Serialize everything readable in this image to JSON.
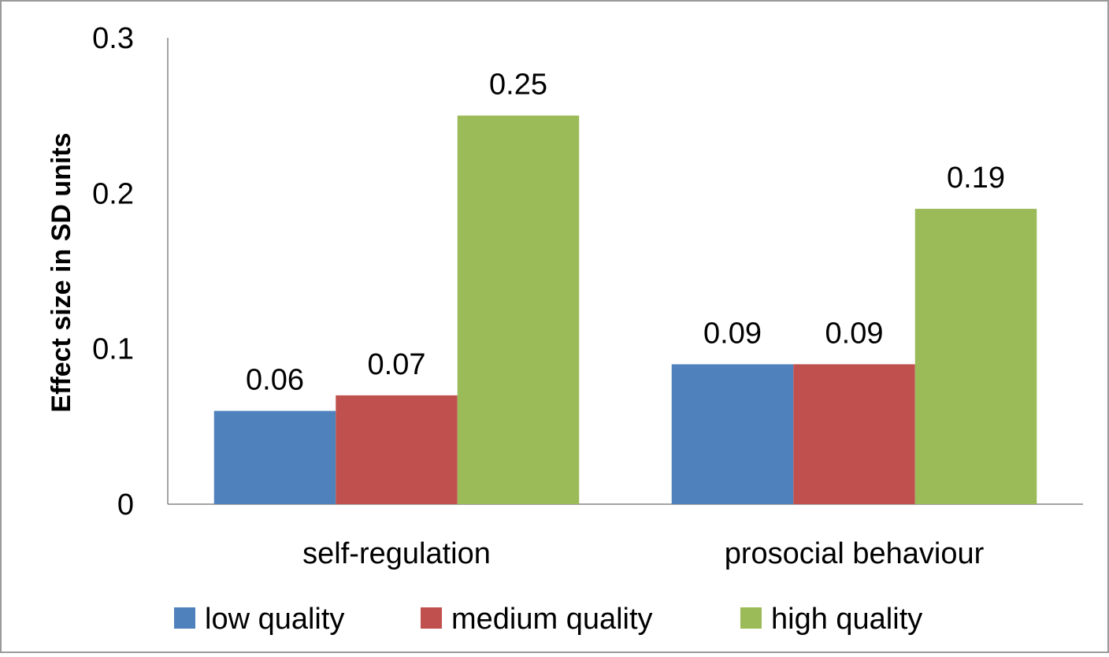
{
  "chart_data": {
    "type": "bar",
    "title": "",
    "xlabel": "",
    "ylabel": "Effect size in SD units",
    "categories": [
      "self-regulation",
      "prosocial behaviour"
    ],
    "series": [
      {
        "name": "low quality",
        "color": "#4F81BD",
        "values": [
          0.06,
          0.09
        ],
        "labels": [
          "0.06",
          "0.09"
        ]
      },
      {
        "name": "medium quality",
        "color": "#C0504D",
        "values": [
          0.07,
          0.09
        ],
        "labels": [
          "0.07",
          "0.09"
        ]
      },
      {
        "name": "high quality",
        "color": "#9BBB59",
        "values": [
          0.25,
          0.19
        ],
        "labels": [
          "0.25",
          "0.19"
        ]
      }
    ],
    "ylim": [
      0,
      0.3
    ],
    "yticks": [
      0,
      0.1,
      0.2,
      0.3
    ],
    "ytick_labels": [
      "0",
      "0.1",
      "0.2",
      "0.3"
    ],
    "grid": false,
    "legend_position": "bottom"
  }
}
